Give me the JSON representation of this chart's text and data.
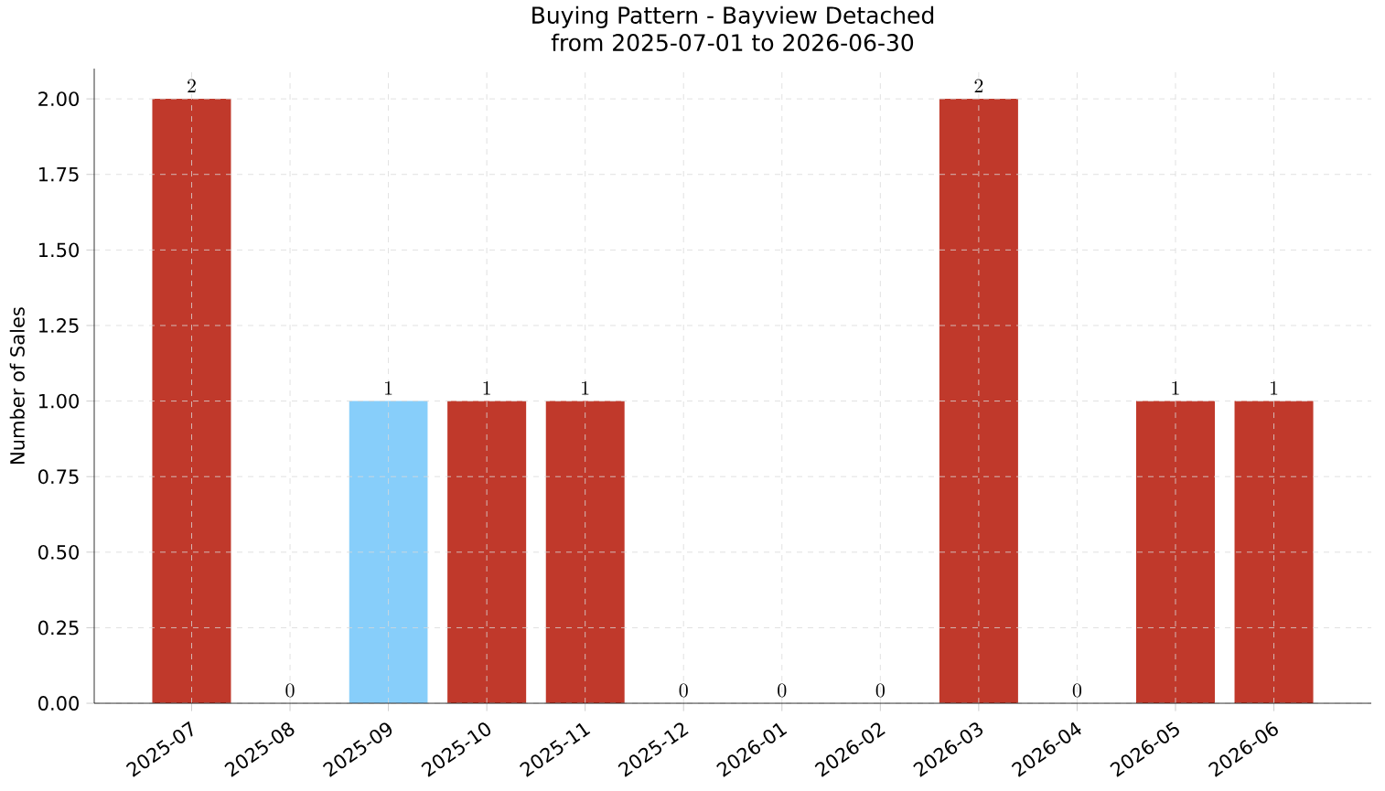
{
  "chart_data": {
    "type": "bar",
    "title": "Buying Pattern - Bayview Detached",
    "subtitle": "from 2025-07-01 to 2026-06-30",
    "ylabel": "Number of Sales",
    "categories": [
      "2025-07",
      "2025-08",
      "2025-09",
      "2025-10",
      "2025-11",
      "2025-12",
      "2026-01",
      "2026-02",
      "2026-03",
      "2026-04",
      "2026-05",
      "2026-06"
    ],
    "values": [
      2,
      0,
      1,
      1,
      1,
      0,
      0,
      0,
      2,
      0,
      1,
      1
    ],
    "colors": [
      "#c0392b",
      "#c0392b",
      "#87cefa",
      "#c0392b",
      "#c0392b",
      "#c0392b",
      "#c0392b",
      "#c0392b",
      "#c0392b",
      "#c0392b",
      "#c0392b",
      "#c0392b"
    ],
    "ylim": [
      0,
      2.1
    ],
    "yticks": [
      {
        "value": 0,
        "label": "0.00"
      },
      {
        "value": 0.25,
        "label": "0.25"
      },
      {
        "value": 0.5,
        "label": "0.50"
      },
      {
        "value": 0.75,
        "label": "0.75"
      },
      {
        "value": 1,
        "label": "1.00"
      },
      {
        "value": 1.25,
        "label": "1.25"
      },
      {
        "value": 1.5,
        "label": "1.50"
      },
      {
        "value": 1.75,
        "label": "1.75"
      },
      {
        "value": 2,
        "label": "2.00"
      }
    ],
    "grid": true,
    "data_labels": true
  }
}
